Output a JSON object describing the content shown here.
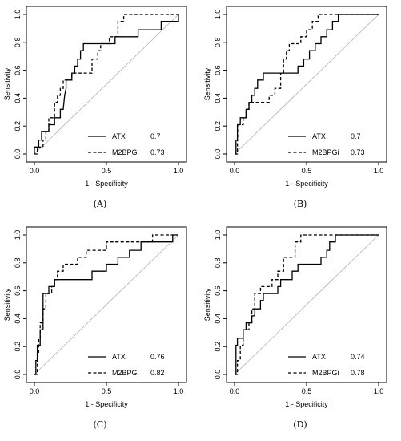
{
  "chart_data": [
    {
      "type": "line",
      "panel": "(A)",
      "xlabel": "1 - Specificity",
      "ylabel": "Sensitivity",
      "xlim": [
        0,
        1
      ],
      "ylim": [
        0,
        1
      ],
      "xticks": [
        "0.0",
        "0.5",
        "1.0"
      ],
      "yticks": [
        "0.0",
        "0.2",
        "0.4",
        "0.6",
        "0.8",
        "1.0"
      ],
      "legend_position": "bottom-right",
      "diagonal": true,
      "series": [
        {
          "name": "ATX",
          "auc": "0.7",
          "style": "solid",
          "points": [
            [
              0,
              0
            ],
            [
              0,
              0.05
            ],
            [
              0.03,
              0.05
            ],
            [
              0.03,
              0.1
            ],
            [
              0.05,
              0.1
            ],
            [
              0.05,
              0.16
            ],
            [
              0.1,
              0.16
            ],
            [
              0.1,
              0.21
            ],
            [
              0.14,
              0.21
            ],
            [
              0.14,
              0.26
            ],
            [
              0.18,
              0.26
            ],
            [
              0.18,
              0.32
            ],
            [
              0.2,
              0.32
            ],
            [
              0.21,
              0.42
            ],
            [
              0.22,
              0.47
            ],
            [
              0.22,
              0.53
            ],
            [
              0.26,
              0.53
            ],
            [
              0.26,
              0.58
            ],
            [
              0.28,
              0.58
            ],
            [
              0.28,
              0.63
            ],
            [
              0.3,
              0.63
            ],
            [
              0.3,
              0.68
            ],
            [
              0.32,
              0.68
            ],
            [
              0.32,
              0.74
            ],
            [
              0.34,
              0.74
            ],
            [
              0.34,
              0.79
            ],
            [
              0.56,
              0.79
            ],
            [
              0.56,
              0.84
            ],
            [
              0.72,
              0.84
            ],
            [
              0.72,
              0.89
            ],
            [
              0.88,
              0.89
            ],
            [
              0.88,
              0.95
            ],
            [
              1,
              0.95
            ],
            [
              1,
              1
            ]
          ]
        },
        {
          "name": "M2BPGi",
          "auc": "0.73",
          "style": "dashed",
          "points": [
            [
              0,
              0
            ],
            [
              0.02,
              0
            ],
            [
              0.02,
              0.05
            ],
            [
              0.06,
              0.05
            ],
            [
              0.06,
              0.1
            ],
            [
              0.08,
              0.1
            ],
            [
              0.08,
              0.16
            ],
            [
              0.1,
              0.16
            ],
            [
              0.1,
              0.26
            ],
            [
              0.14,
              0.26
            ],
            [
              0.14,
              0.37
            ],
            [
              0.16,
              0.37
            ],
            [
              0.16,
              0.42
            ],
            [
              0.18,
              0.42
            ],
            [
              0.18,
              0.47
            ],
            [
              0.2,
              0.47
            ],
            [
              0.2,
              0.53
            ],
            [
              0.26,
              0.53
            ],
            [
              0.26,
              0.58
            ],
            [
              0.4,
              0.58
            ],
            [
              0.4,
              0.68
            ],
            [
              0.44,
              0.68
            ],
            [
              0.44,
              0.74
            ],
            [
              0.46,
              0.74
            ],
            [
              0.46,
              0.79
            ],
            [
              0.52,
              0.79
            ],
            [
              0.52,
              0.84
            ],
            [
              0.58,
              0.84
            ],
            [
              0.58,
              0.95
            ],
            [
              0.62,
              0.95
            ],
            [
              0.62,
              1
            ],
            [
              1,
              1
            ]
          ]
        }
      ]
    },
    {
      "type": "line",
      "panel": "(B)",
      "xlabel": "1 - Specificity",
      "ylabel": "Sensitivity",
      "xlim": [
        0,
        1
      ],
      "ylim": [
        0,
        1
      ],
      "xticks": [
        "0.0",
        "0.5",
        "1.0"
      ],
      "yticks": [
        "0.0",
        "0.2",
        "0.4",
        "0.6",
        "0.8",
        "1.0"
      ],
      "legend_position": "bottom-right",
      "diagonal": true,
      "series": [
        {
          "name": "ATX",
          "auc": "0.7",
          "style": "solid",
          "points": [
            [
              0,
              0
            ],
            [
              0.01,
              0
            ],
            [
              0.01,
              0.1
            ],
            [
              0.02,
              0.1
            ],
            [
              0.02,
              0.21
            ],
            [
              0.04,
              0.21
            ],
            [
              0.04,
              0.26
            ],
            [
              0.08,
              0.26
            ],
            [
              0.08,
              0.32
            ],
            [
              0.1,
              0.32
            ],
            [
              0.1,
              0.37
            ],
            [
              0.12,
              0.37
            ],
            [
              0.12,
              0.42
            ],
            [
              0.14,
              0.42
            ],
            [
              0.14,
              0.47
            ],
            [
              0.16,
              0.47
            ],
            [
              0.16,
              0.53
            ],
            [
              0.2,
              0.53
            ],
            [
              0.2,
              0.58
            ],
            [
              0.44,
              0.58
            ],
            [
              0.44,
              0.63
            ],
            [
              0.48,
              0.63
            ],
            [
              0.48,
              0.68
            ],
            [
              0.52,
              0.68
            ],
            [
              0.52,
              0.74
            ],
            [
              0.56,
              0.74
            ],
            [
              0.56,
              0.79
            ],
            [
              0.6,
              0.79
            ],
            [
              0.6,
              0.84
            ],
            [
              0.64,
              0.84
            ],
            [
              0.64,
              0.89
            ],
            [
              0.68,
              0.89
            ],
            [
              0.68,
              0.95
            ],
            [
              0.72,
              0.95
            ],
            [
              0.72,
              1
            ],
            [
              1,
              1
            ]
          ]
        },
        {
          "name": "M2BPGi",
          "auc": "0.73",
          "style": "dashed",
          "points": [
            [
              0,
              0
            ],
            [
              0.02,
              0
            ],
            [
              0.02,
              0.1
            ],
            [
              0.03,
              0.1
            ],
            [
              0.03,
              0.21
            ],
            [
              0.06,
              0.21
            ],
            [
              0.06,
              0.26
            ],
            [
              0.08,
              0.26
            ],
            [
              0.08,
              0.32
            ],
            [
              0.1,
              0.32
            ],
            [
              0.1,
              0.37
            ],
            [
              0.24,
              0.37
            ],
            [
              0.24,
              0.42
            ],
            [
              0.28,
              0.42
            ],
            [
              0.28,
              0.47
            ],
            [
              0.32,
              0.47
            ],
            [
              0.32,
              0.58
            ],
            [
              0.34,
              0.58
            ],
            [
              0.34,
              0.68
            ],
            [
              0.36,
              0.68
            ],
            [
              0.36,
              0.74
            ],
            [
              0.38,
              0.74
            ],
            [
              0.38,
              0.79
            ],
            [
              0.46,
              0.79
            ],
            [
              0.46,
              0.84
            ],
            [
              0.5,
              0.84
            ],
            [
              0.5,
              0.89
            ],
            [
              0.54,
              0.89
            ],
            [
              0.54,
              0.95
            ],
            [
              0.58,
              0.95
            ],
            [
              0.58,
              1
            ],
            [
              1,
              1
            ]
          ]
        }
      ]
    },
    {
      "type": "line",
      "panel": "(C)",
      "xlabel": "1 - Specificity",
      "ylabel": "Sensitivity",
      "xlim": [
        0,
        1
      ],
      "ylim": [
        0,
        1
      ],
      "xticks": [
        "0.0",
        "0.5",
        "1.0"
      ],
      "yticks": [
        "0.0",
        "0.2",
        "0.4",
        "0.6",
        "0.8",
        "1.0"
      ],
      "legend_position": "bottom-right",
      "diagonal": true,
      "series": [
        {
          "name": "ATX",
          "auc": "0.76",
          "style": "solid",
          "points": [
            [
              0,
              0
            ],
            [
              0.01,
              0
            ],
            [
              0.01,
              0.1
            ],
            [
              0.02,
              0.1
            ],
            [
              0.02,
              0.21
            ],
            [
              0.04,
              0.21
            ],
            [
              0.04,
              0.32
            ],
            [
              0.06,
              0.32
            ],
            [
              0.06,
              0.58
            ],
            [
              0.1,
              0.58
            ],
            [
              0.1,
              0.63
            ],
            [
              0.14,
              0.63
            ],
            [
              0.14,
              0.68
            ],
            [
              0.4,
              0.68
            ],
            [
              0.4,
              0.74
            ],
            [
              0.5,
              0.74
            ],
            [
              0.5,
              0.79
            ],
            [
              0.58,
              0.79
            ],
            [
              0.58,
              0.84
            ],
            [
              0.66,
              0.84
            ],
            [
              0.66,
              0.89
            ],
            [
              0.74,
              0.89
            ],
            [
              0.74,
              0.95
            ],
            [
              0.96,
              0.95
            ],
            [
              0.96,
              1
            ],
            [
              1,
              1
            ]
          ]
        },
        {
          "name": "M2BPGi",
          "auc": "0.82",
          "style": "dashed",
          "points": [
            [
              0,
              0
            ],
            [
              0.02,
              0
            ],
            [
              0.02,
              0.16
            ],
            [
              0.03,
              0.16
            ],
            [
              0.03,
              0.26
            ],
            [
              0.04,
              0.26
            ],
            [
              0.04,
              0.37
            ],
            [
              0.06,
              0.37
            ],
            [
              0.06,
              0.47
            ],
            [
              0.08,
              0.47
            ],
            [
              0.08,
              0.58
            ],
            [
              0.12,
              0.58
            ],
            [
              0.12,
              0.63
            ],
            [
              0.14,
              0.63
            ],
            [
              0.14,
              0.68
            ],
            [
              0.16,
              0.68
            ],
            [
              0.16,
              0.74
            ],
            [
              0.2,
              0.74
            ],
            [
              0.2,
              0.79
            ],
            [
              0.3,
              0.79
            ],
            [
              0.3,
              0.84
            ],
            [
              0.36,
              0.84
            ],
            [
              0.36,
              0.89
            ],
            [
              0.5,
              0.89
            ],
            [
              0.5,
              0.95
            ],
            [
              0.82,
              0.95
            ],
            [
              0.82,
              1
            ],
            [
              1,
              1
            ]
          ]
        }
      ]
    },
    {
      "type": "line",
      "panel": "(D)",
      "xlabel": "1 - Specificity",
      "ylabel": "Sensitivity",
      "xlim": [
        0,
        1
      ],
      "ylim": [
        0,
        1
      ],
      "xticks": [
        "0.0",
        "0.5",
        "1.0"
      ],
      "yticks": [
        "0.0",
        "0.2",
        "0.4",
        "0.6",
        "0.8",
        "1.0"
      ],
      "legend_position": "bottom-right",
      "diagonal": true,
      "series": [
        {
          "name": "ATX",
          "auc": "0.74",
          "style": "solid",
          "points": [
            [
              0,
              0
            ],
            [
              0.01,
              0
            ],
            [
              0.01,
              0.21
            ],
            [
              0.02,
              0.21
            ],
            [
              0.02,
              0.26
            ],
            [
              0.06,
              0.26
            ],
            [
              0.06,
              0.32
            ],
            [
              0.08,
              0.32
            ],
            [
              0.08,
              0.37
            ],
            [
              0.12,
              0.37
            ],
            [
              0.12,
              0.42
            ],
            [
              0.14,
              0.42
            ],
            [
              0.14,
              0.47
            ],
            [
              0.18,
              0.47
            ],
            [
              0.18,
              0.53
            ],
            [
              0.2,
              0.53
            ],
            [
              0.2,
              0.58
            ],
            [
              0.3,
              0.58
            ],
            [
              0.3,
              0.63
            ],
            [
              0.32,
              0.63
            ],
            [
              0.32,
              0.68
            ],
            [
              0.4,
              0.68
            ],
            [
              0.4,
              0.74
            ],
            [
              0.44,
              0.74
            ],
            [
              0.44,
              0.79
            ],
            [
              0.6,
              0.79
            ],
            [
              0.6,
              0.84
            ],
            [
              0.64,
              0.84
            ],
            [
              0.64,
              0.89
            ],
            [
              0.66,
              0.89
            ],
            [
              0.66,
              0.95
            ],
            [
              0.7,
              0.95
            ],
            [
              0.7,
              1
            ],
            [
              1,
              1
            ]
          ]
        },
        {
          "name": "M2BPGi",
          "auc": "0.78",
          "style": "dashed",
          "points": [
            [
              0,
              0
            ],
            [
              0.02,
              0
            ],
            [
              0.02,
              0.1
            ],
            [
              0.04,
              0.1
            ],
            [
              0.04,
              0.21
            ],
            [
              0.06,
              0.21
            ],
            [
              0.06,
              0.32
            ],
            [
              0.1,
              0.32
            ],
            [
              0.1,
              0.37
            ],
            [
              0.12,
              0.37
            ],
            [
              0.12,
              0.47
            ],
            [
              0.14,
              0.47
            ],
            [
              0.14,
              0.58
            ],
            [
              0.18,
              0.58
            ],
            [
              0.18,
              0.63
            ],
            [
              0.26,
              0.63
            ],
            [
              0.26,
              0.68
            ],
            [
              0.3,
              0.68
            ],
            [
              0.3,
              0.74
            ],
            [
              0.34,
              0.74
            ],
            [
              0.34,
              0.84
            ],
            [
              0.42,
              0.84
            ],
            [
              0.42,
              0.95
            ],
            [
              0.46,
              0.95
            ],
            [
              0.46,
              1
            ],
            [
              1,
              1
            ]
          ]
        }
      ]
    }
  ]
}
